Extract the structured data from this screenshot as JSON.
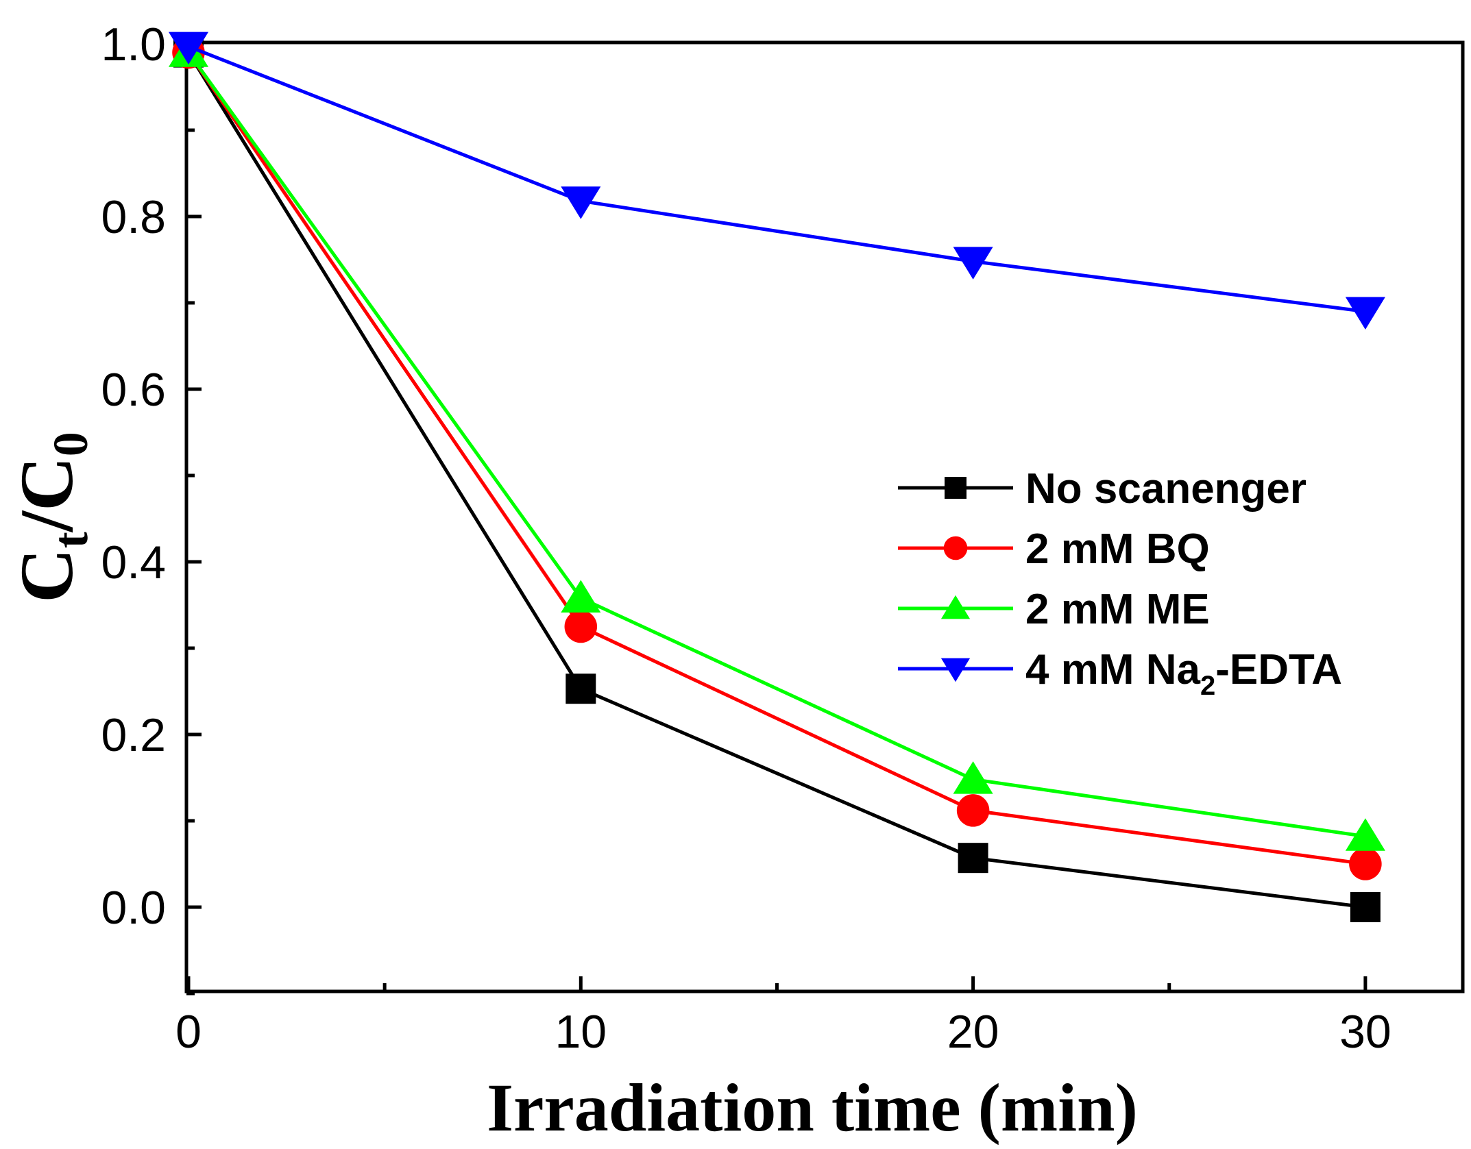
{
  "chart_data": {
    "type": "line",
    "title": "",
    "xlabel": "Irradiation time (min)",
    "ylabel": {
      "main": "C",
      "sub1": "t",
      "sep": "/C",
      "sub2": "0"
    },
    "xlim": [
      0,
      32.5
    ],
    "ylim": [
      -0.1,
      1.0
    ],
    "x_ticks": [
      0,
      10,
      20,
      30
    ],
    "x_tick_labels": [
      "0",
      "10",
      "20",
      "30"
    ],
    "x_minor_ticks": [
      5,
      15,
      25
    ],
    "y_ticks": [
      0.0,
      0.2,
      0.4,
      0.6,
      0.8,
      1.0
    ],
    "y_tick_labels": [
      "0.0",
      "0.2",
      "0.4",
      "0.6",
      "0.8",
      "1.0"
    ],
    "y_minor_ticks": [
      -0.1,
      0.1,
      0.3,
      0.5,
      0.7,
      0.9
    ],
    "grid": false,
    "legend_position": "right",
    "x": [
      0,
      10,
      20,
      30
    ],
    "series": [
      {
        "name": "No scanenger",
        "label_main": "No scanenger",
        "label_sub": "",
        "label_tail": "",
        "color": "#000000",
        "marker": "square",
        "values": [
          0.99,
          0.253,
          0.057,
          0.0
        ]
      },
      {
        "name": "2 mM BQ",
        "label_main": "2 mM BQ",
        "label_sub": "",
        "label_tail": "",
        "color": "#ff0000",
        "marker": "circle",
        "values": [
          0.99,
          0.325,
          0.112,
          0.05
        ]
      },
      {
        "name": "2 mM ME",
        "label_main": "2 mM ME",
        "label_sub": "",
        "label_tail": "",
        "color": "#00ff00",
        "marker": "triangle-up",
        "values": [
          0.99,
          0.358,
          0.148,
          0.082
        ]
      },
      {
        "name": "4 mM Na2-EDTA",
        "label_main": "4 mM Na",
        "label_sub": "2",
        "label_tail": "-EDTA",
        "color": "#0000ff",
        "marker": "triangle-down",
        "values": [
          0.997,
          0.818,
          0.748,
          0.69
        ]
      }
    ]
  }
}
